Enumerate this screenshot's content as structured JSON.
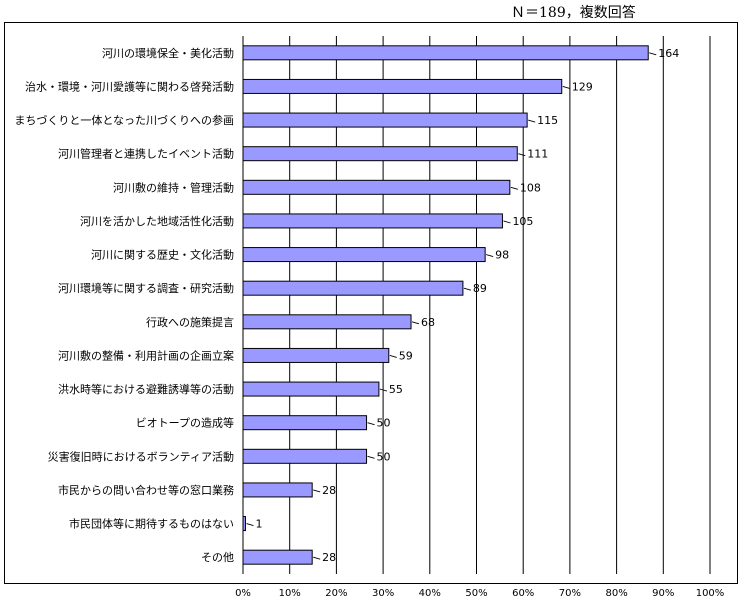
{
  "note": "Ｎ＝189，複数回答",
  "chart_data": {
    "type": "bar",
    "orientation": "horizontal",
    "title": "",
    "total_n": 189,
    "categories": [
      "河川の環境保全・美化活動",
      "治水・環境・河川愛護等に関わる啓発活動",
      "まちづくりと一体となった川づくりへの参画",
      "河川管理者と連携したイベント活動",
      "河川敷の維持・管理活動",
      "河川を活かした地域活性化活動",
      "河川に関する歴史・文化活動",
      "河川環境等に関する調査・研究活動",
      "行政への施策提言",
      "河川敷の整備・利用計画の企画立案",
      "洪水時等における避難誘導等の活動",
      "ビオトープの造成等",
      "災害復旧時におけるボランティア活動",
      "市民からの問い合わせ等の窓口業務",
      "市民団体等に期待するものはない",
      "その他"
    ],
    "values": [
      164,
      129,
      115,
      111,
      108,
      105,
      98,
      89,
      68,
      59,
      55,
      50,
      50,
      28,
      1,
      28
    ],
    "value_labels": [
      "164",
      "129",
      "115",
      "111",
      "108",
      "105",
      "98",
      "89",
      "68",
      "59",
      "55",
      "50",
      "50",
      "28",
      "1",
      "28"
    ],
    "xlim": [
      0,
      100
    ],
    "x_unit": "%",
    "x_ticks": [
      "0%",
      "10%",
      "20%",
      "30%",
      "40%",
      "50%",
      "60%",
      "70%",
      "80%",
      "90%",
      "100%"
    ],
    "grid": true,
    "bar_color": "#9999FF",
    "bar_edge_color": "#000000"
  }
}
